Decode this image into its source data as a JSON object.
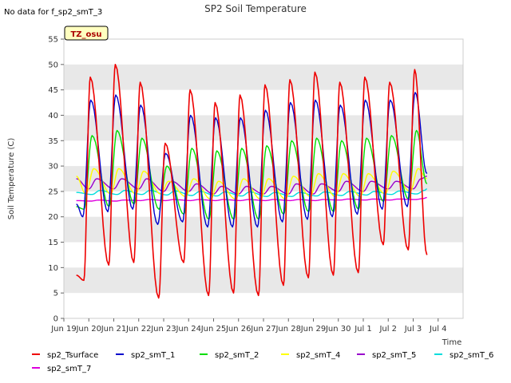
{
  "note": "No data for f_sp2_smT_3",
  "badge": "TZ_osu",
  "colors": {
    "sp2_Tsurface": "#ee0000",
    "sp2_smT_1": "#0000cc",
    "sp2_smT_2": "#00dd00",
    "sp2_smT_4": "#ffff00",
    "sp2_smT_5": "#9900cc",
    "sp2_smT_6": "#00dddd",
    "sp2_smT_7": "#dd00dd",
    "band": "#e8e8e8",
    "badge_bg": "#ffffc0"
  },
  "chart_data": {
    "type": "line",
    "title": "SP2 Soil Temperature",
    "xlabel": "Time",
    "ylabel": "Soil Temperature (C)",
    "xlim": [
      18.5,
      34.5
    ],
    "ylim": [
      0,
      55
    ],
    "yticks": [
      0,
      5,
      10,
      15,
      20,
      25,
      30,
      35,
      40,
      45,
      50,
      55
    ],
    "xticks": [
      {
        "day": 18.5,
        "label": "Jun 19"
      },
      {
        "day": 19.5,
        "label": "Jun 20"
      },
      {
        "day": 20.5,
        "label": "Jun 21"
      },
      {
        "day": 21.5,
        "label": "Jun 22"
      },
      {
        "day": 22.5,
        "label": "Jun 23"
      },
      {
        "day": 23.5,
        "label": "Jun 24"
      },
      {
        "day": 24.5,
        "label": "Jun 25"
      },
      {
        "day": 25.5,
        "label": "Jun 26"
      },
      {
        "day": 26.5,
        "label": "Jun 27"
      },
      {
        "day": 27.5,
        "label": "Jun 28"
      },
      {
        "day": 28.5,
        "label": "Jun 29"
      },
      {
        "day": 29.5,
        "label": "Jun 30"
      },
      {
        "day": 30.5,
        "label": "Jul 1"
      },
      {
        "day": 31.5,
        "label": "Jul 2"
      },
      {
        "day": 32.5,
        "label": "Jul 3"
      },
      {
        "day": 33.5,
        "label": "Jul 4"
      }
    ],
    "days": [
      19,
      20,
      21,
      22,
      23,
      24,
      25,
      26,
      27,
      28,
      29,
      30,
      31,
      32,
      33
    ],
    "series": [
      {
        "name": "sp2_Tsurface",
        "daily_max": [
          47.5,
          50,
          46.5,
          34.5,
          45,
          42.5,
          44,
          46,
          47,
          48.5,
          46.5,
          47.5,
          46.5,
          49
        ],
        "daily_min": [
          7.5,
          10.5,
          11,
          4,
          11,
          4.5,
          5,
          4.5,
          6.5,
          8,
          8.5,
          9,
          14.5,
          13.5
        ],
        "start": 8.5,
        "end": 12.5
      },
      {
        "name": "sp2_smT_1",
        "daily_max": [
          43,
          44,
          42,
          32.5,
          40,
          39.5,
          39.5,
          41,
          42.5,
          43,
          42,
          43,
          43,
          44.5
        ],
        "daily_min": [
          20,
          21,
          21.5,
          18.5,
          19,
          18,
          18,
          18,
          19,
          19.5,
          20,
          20.5,
          21.5,
          22
        ],
        "start": 22.5,
        "end": 28.5
      },
      {
        "name": "sp2_smT_2",
        "daily_max": [
          36,
          37,
          35.5,
          30,
          33.5,
          33,
          33.5,
          34,
          35,
          35.5,
          35,
          35.5,
          36,
          37
        ],
        "daily_min": [
          21.5,
          22,
          22.5,
          21.5,
          20.5,
          19.5,
          19.5,
          19.5,
          20.5,
          21,
          21,
          21.5,
          23,
          23.5
        ],
        "start": 22,
        "end": 26.5
      },
      {
        "name": "sp2_smT_4",
        "daily_max": [
          29.5,
          29.5,
          29,
          27,
          27.5,
          27,
          27.5,
          27.5,
          28,
          28.5,
          28.5,
          28.5,
          29,
          29.5
        ],
        "daily_min": [
          24.5,
          24.5,
          24.5,
          24.5,
          24,
          23.5,
          23.5,
          23.5,
          23.5,
          24,
          24,
          24,
          24.5,
          25
        ],
        "start": 28,
        "end": 27.5
      },
      {
        "name": "sp2_smT_5",
        "daily_max": [
          27.5,
          27.5,
          27.5,
          27,
          26.5,
          26,
          26,
          26,
          26.5,
          26.5,
          27,
          27,
          27,
          27.5
        ],
        "daily_min": [
          25.5,
          25.5,
          25.5,
          25,
          25,
          24.5,
          24.5,
          24.5,
          24.5,
          24.5,
          25,
          25,
          25.5,
          25.5
        ],
        "start": 27.5,
        "end": 28
      },
      {
        "name": "sp2_smT_6",
        "daily_max": [
          25.2,
          25.2,
          25.2,
          25.1,
          25,
          24.9,
          24.9,
          24.8,
          24.8,
          24.9,
          25,
          25,
          25.1,
          25.2
        ],
        "daily_min": [
          24.4,
          24.4,
          24.4,
          24.3,
          24.2,
          24.1,
          24.1,
          24,
          24,
          24.1,
          24.2,
          24.3,
          24.4,
          24.5
        ],
        "start": 24.8,
        "end": 25.5
      },
      {
        "name": "sp2_smT_7",
        "daily_max": [
          23.3,
          23.3,
          23.4,
          23.4,
          23.4,
          23.4,
          23.4,
          23.4,
          23.4,
          23.4,
          23.5,
          23.5,
          23.5,
          23.6
        ],
        "daily_min": [
          23.1,
          23.1,
          23.2,
          23.2,
          23.2,
          23.2,
          23.2,
          23.2,
          23.2,
          23.2,
          23.3,
          23.3,
          23.3,
          23.4
        ],
        "start": 23.2,
        "end": 23.8
      }
    ],
    "legend": [
      "sp2_Tsurface",
      "sp2_smT_1",
      "sp2_smT_2",
      "sp2_smT_4",
      "sp2_smT_5",
      "sp2_smT_6",
      "sp2_smT_7"
    ],
    "legend_position": "bottom",
    "grid": true
  }
}
